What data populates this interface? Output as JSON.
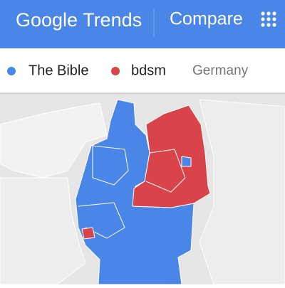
{
  "header": {
    "title": "Google Trends",
    "action": "Compare"
  },
  "legend": {
    "items": [
      {
        "label": "The Bible",
        "color": "#4a85e8"
      },
      {
        "label": "bdsm",
        "color": "#d9444a"
      }
    ],
    "region": "Germany"
  }
}
